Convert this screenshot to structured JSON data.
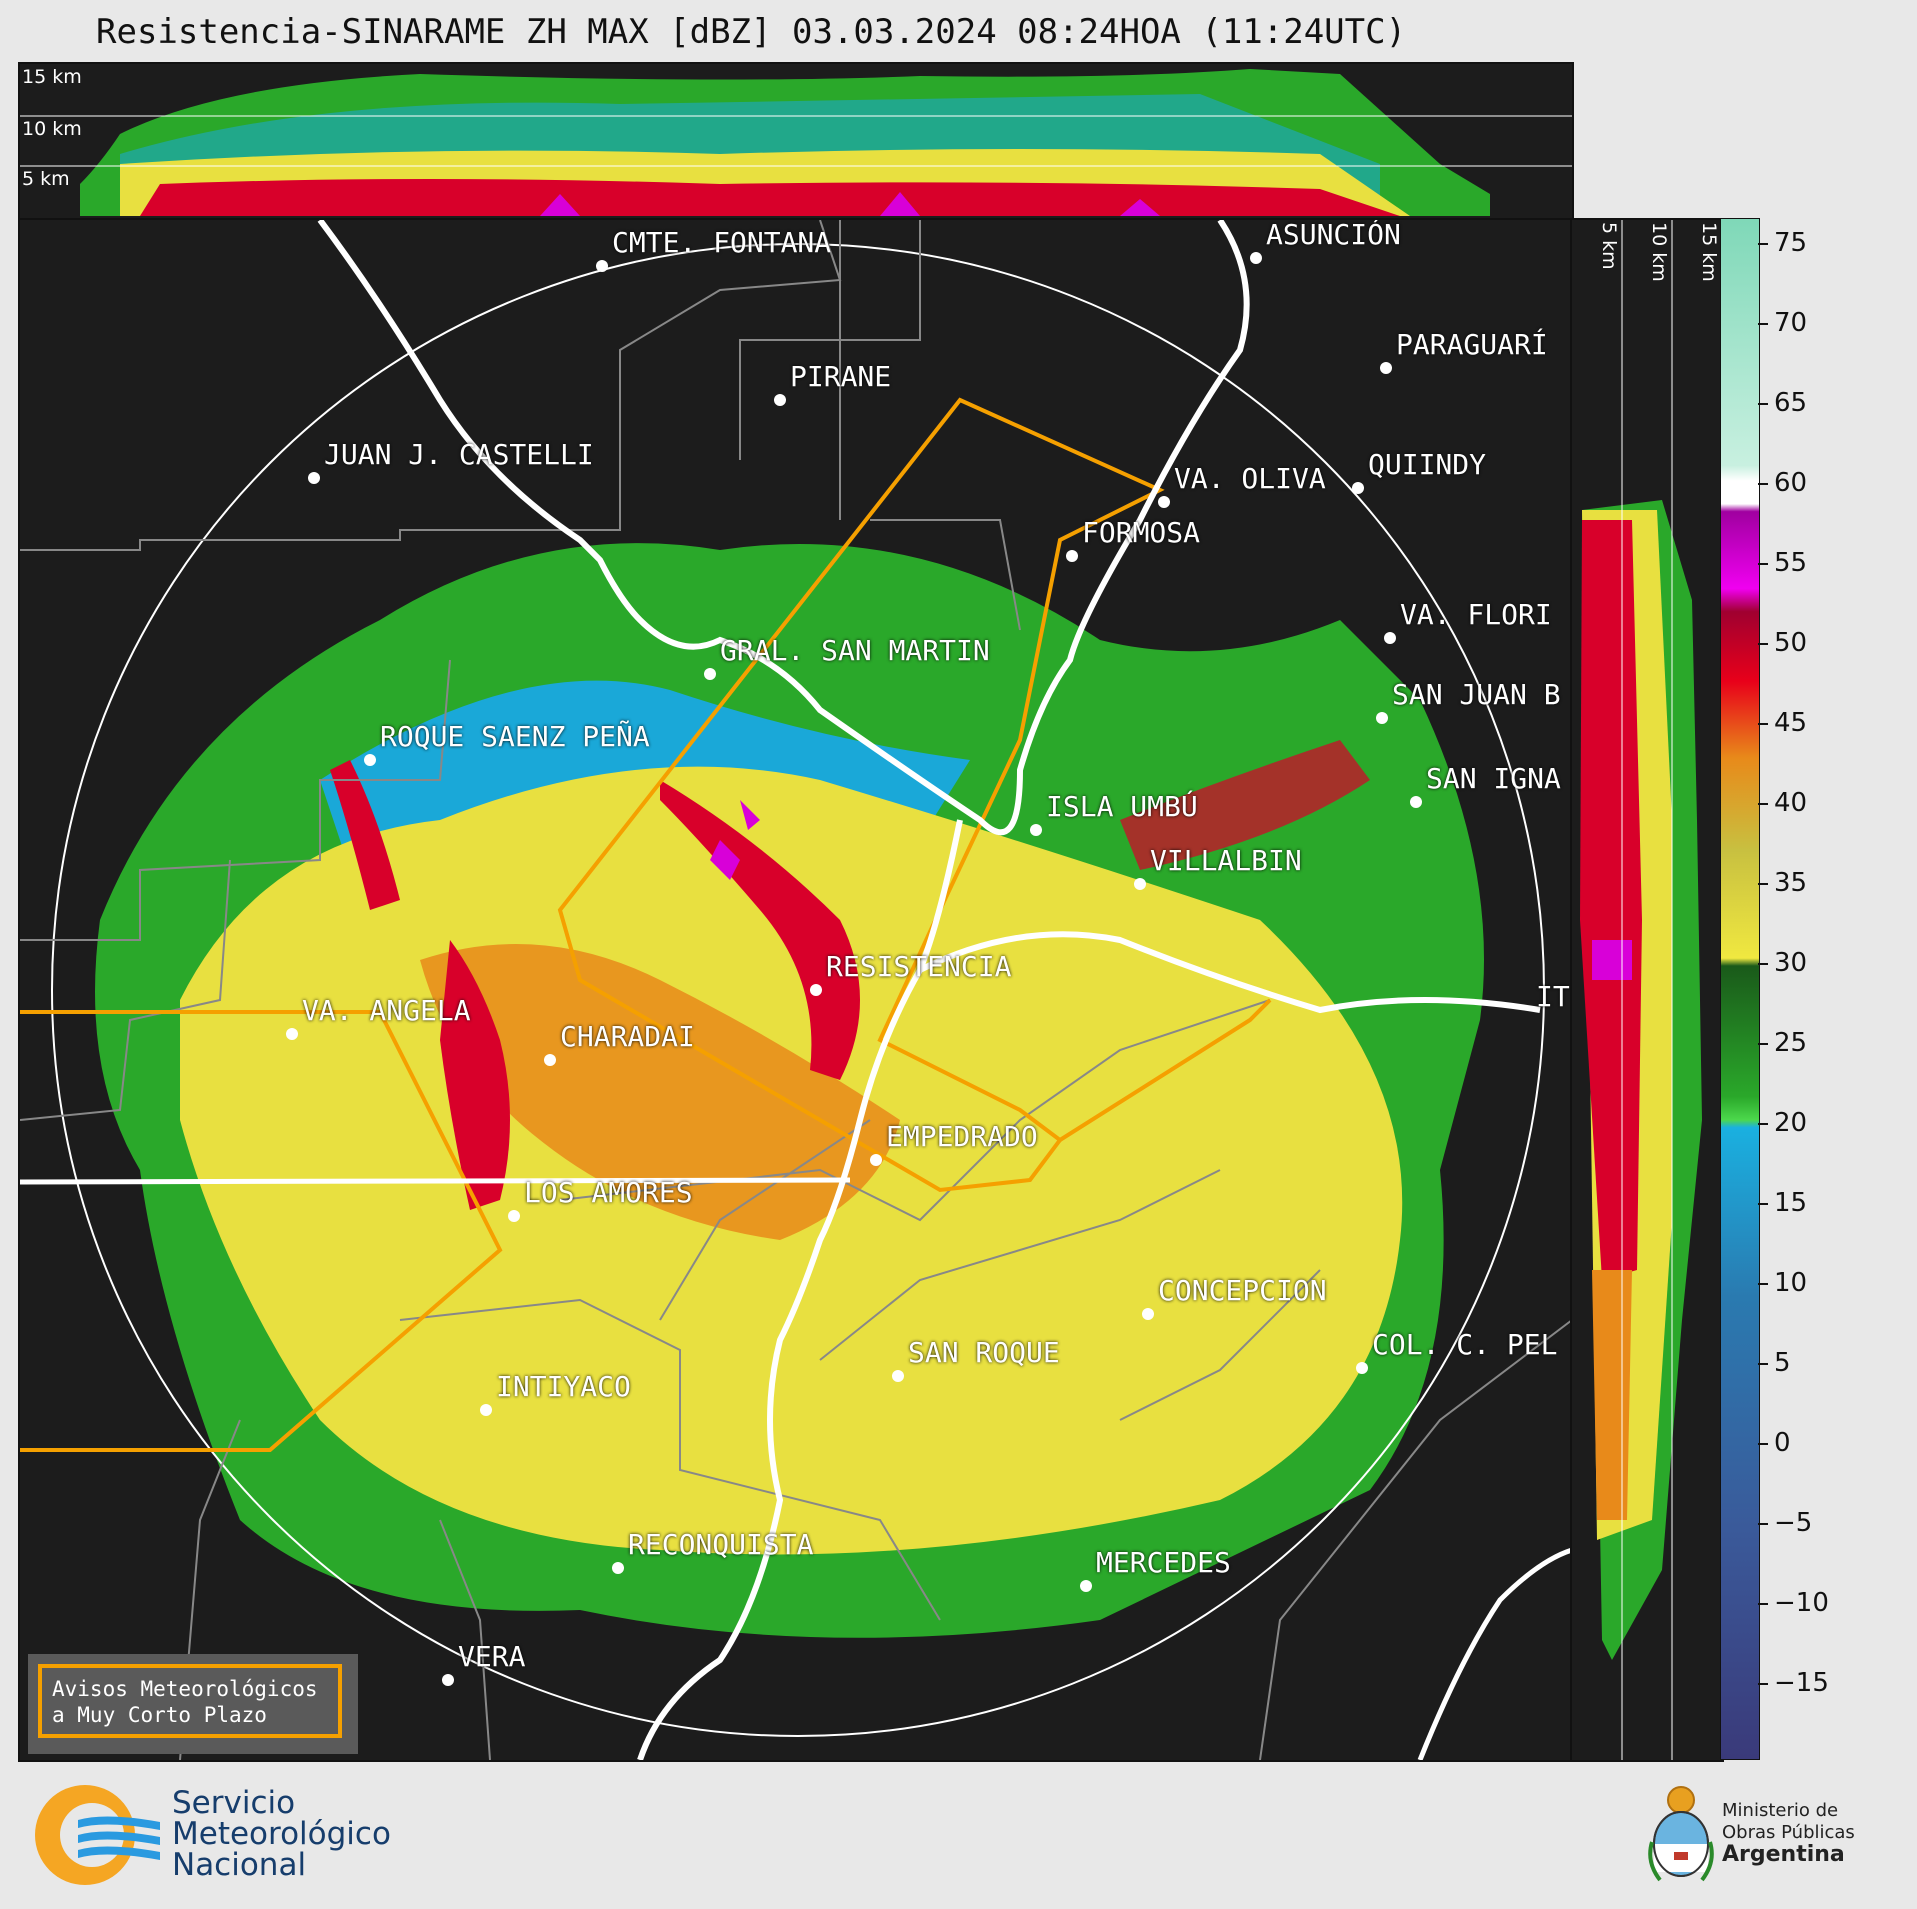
{
  "header": {
    "title": "Resistencia-SINARAME ZH MAX [dBZ] 03.03.2024 08:24HOA (11:24UTC)"
  },
  "top_panel": {
    "levels": [
      "15 km",
      "10 km",
      "5 km"
    ]
  },
  "side_panel": {
    "levels": [
      "5 km",
      "10 km",
      "15 km"
    ]
  },
  "colorbar": {
    "ticks": [
      "75",
      "70",
      "65",
      "60",
      "55",
      "50",
      "45",
      "40",
      "35",
      "30",
      "25",
      "20",
      "15",
      "10",
      "5",
      "0",
      "−5",
      "−10",
      "−15"
    ],
    "colors": {
      "very_high": "#7fd8b8",
      "high_white": "#ffffff",
      "magenta": "#d800d8",
      "red": "#d8002a",
      "orange": "#e88a1a",
      "yellow": "#e8e040",
      "green": "#2aa82a",
      "light_green": "#4cd84c",
      "cyan": "#1aa8d8",
      "blue": "#2a6ab0",
      "navy": "#3a3a7a"
    }
  },
  "cities": [
    {
      "name": "CMTE. FONTANA"
    },
    {
      "name": "ASUNCIÓN"
    },
    {
      "name": "PIRANE"
    },
    {
      "name": "PARAGUARÍ"
    },
    {
      "name": "JUAN J. CASTELLI"
    },
    {
      "name": "VA. OLIVA"
    },
    {
      "name": "QUIINDY"
    },
    {
      "name": "FORMOSA"
    },
    {
      "name": "VA. FLORI"
    },
    {
      "name": "GRAL. SAN MARTIN"
    },
    {
      "name": "SAN JUAN B"
    },
    {
      "name": "ROQUE SAENZ PEÑA"
    },
    {
      "name": "SAN IGNA"
    },
    {
      "name": "ISLA UMBÚ"
    },
    {
      "name": "VILLALBIN"
    },
    {
      "name": "RESISTENCIA"
    },
    {
      "name": "IT"
    },
    {
      "name": "VA. ANGELA"
    },
    {
      "name": "CHARADAI"
    },
    {
      "name": "EMPEDRADO"
    },
    {
      "name": "LOS AMORES"
    },
    {
      "name": "CONCEPCION"
    },
    {
      "name": "COL. C. PEL"
    },
    {
      "name": "SAN ROQUE"
    },
    {
      "name": "INTIYACO"
    },
    {
      "name": "RECONQUISTA"
    },
    {
      "name": "MERCEDES"
    },
    {
      "name": "VERA"
    }
  ],
  "notice": {
    "line1": "Avisos Meteorológicos",
    "line2": "a Muy Corto Plazo"
  },
  "logo_smn": {
    "line1": "Servicio",
    "line2": "Meteorológico",
    "line3": "Nacional"
  },
  "logo_ministry": {
    "line1": "Ministerio de",
    "line2": "Obras Públicas",
    "line3": "Argentina"
  }
}
